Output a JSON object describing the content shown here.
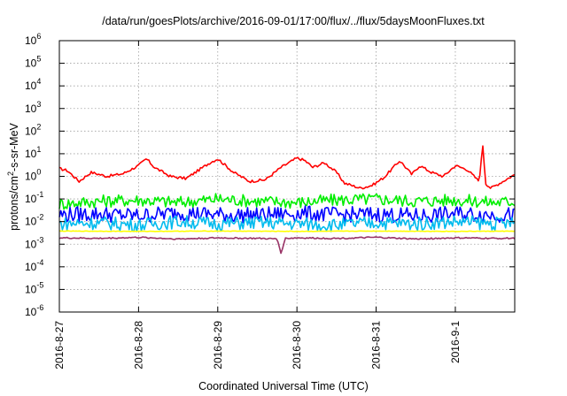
{
  "chart_data": {
    "type": "line",
    "title": "/data/run/goesPlots/archive/2016-09-01/17:00/flux/../flux/5daysMoonFluxes.txt",
    "xlabel": "Coordinated Universal Time (UTC)",
    "ylabel": {
      "prefix": "protons/cm",
      "sup": "2",
      "suffix": "-s-sr-MeV"
    },
    "yscale": "log",
    "ylim": [
      1e-06,
      1000000.0
    ],
    "xlim": [
      "2016-08-27T00:00",
      "2016-09-01T18:00"
    ],
    "grid": true,
    "legend": "none",
    "x_ticks": [
      "2016-8-27",
      "2016-8-28",
      "2016-8-29",
      "2016-8-30",
      "2016-8-31",
      "2016-9-1"
    ],
    "y_ticks": [
      {
        "base": "10",
        "exp": "-6"
      },
      {
        "base": "10",
        "exp": "-5"
      },
      {
        "base": "10",
        "exp": "-4"
      },
      {
        "base": "10",
        "exp": "-3"
      },
      {
        "base": "10",
        "exp": "-2"
      },
      {
        "base": "10",
        "exp": "-1"
      },
      {
        "base": "10",
        "exp": "0"
      },
      {
        "base": "10",
        "exp": "1"
      },
      {
        "base": "10",
        "exp": "2"
      },
      {
        "base": "10",
        "exp": "3"
      },
      {
        "base": "10",
        "exp": "4"
      },
      {
        "base": "10",
        "exp": "5"
      },
      {
        "base": "10",
        "exp": "6"
      }
    ],
    "series": [
      {
        "color": "#ff0000",
        "x_days": [
          0,
          0.1,
          0.25,
          0.4,
          0.6,
          0.8,
          1.0,
          1.1,
          1.2,
          1.4,
          1.6,
          1.9,
          2.0,
          2.2,
          2.4,
          2.6,
          2.8,
          3.0,
          3.1,
          3.2,
          3.35,
          3.5,
          3.6,
          3.8,
          3.95,
          4.1,
          4.3,
          4.45,
          4.55,
          4.7,
          4.85,
          5.0,
          5.15,
          5.3,
          5.35,
          5.38,
          5.45,
          5.6,
          5.75,
          5.9,
          6.05,
          6.2,
          6.35,
          6.5,
          6.6,
          6.75
        ],
        "values": [
          2.2,
          1.8,
          0.6,
          1.5,
          1.0,
          1.3,
          3.0,
          6.0,
          2.5,
          1.0,
          0.8,
          4.0,
          6.0,
          1.5,
          0.6,
          0.7,
          2.5,
          6.5,
          5.0,
          2.5,
          4.0,
          1.5,
          0.5,
          0.3,
          0.4,
          0.9,
          5.0,
          1.2,
          3.0,
          1.5,
          1.0,
          3.0,
          2.0,
          0.6,
          28.0,
          0.5,
          0.3,
          0.6,
          1.2,
          0.6,
          2.0,
          1.5,
          5.0,
          2.5,
          3.0,
          2.5
        ]
      },
      {
        "color": "#00ee00",
        "x_days": [
          0,
          0.5,
          1.0,
          1.5,
          2.0,
          2.5,
          3.0,
          3.5,
          4.0,
          4.5,
          5.0,
          5.5,
          6.0,
          6.5,
          6.75
        ],
        "values": [
          0.06,
          0.08,
          0.09,
          0.07,
          0.1,
          0.08,
          0.07,
          0.09,
          0.1,
          0.08,
          0.09,
          0.07,
          0.09,
          0.08,
          0.08
        ]
      },
      {
        "color": "#0000ff",
        "x_days": [
          0,
          0.5,
          1.0,
          1.5,
          2.0,
          2.5,
          3.0,
          3.5,
          4.0,
          4.5,
          5.0,
          5.5,
          6.0,
          6.5,
          6.75
        ],
        "values": [
          0.02,
          0.022,
          0.018,
          0.025,
          0.02,
          0.019,
          0.023,
          0.02,
          0.021,
          0.018,
          0.022,
          0.02,
          0.019,
          0.021,
          0.02
        ]
      },
      {
        "color": "#00bbee",
        "x_days": [
          0,
          0.5,
          1.0,
          1.5,
          2.0,
          2.5,
          3.0,
          3.5,
          4.0,
          4.5,
          5.0,
          5.5,
          6.0,
          6.5,
          6.75
        ],
        "values": [
          0.008,
          0.009,
          0.007,
          0.01,
          0.008,
          0.009,
          0.008,
          0.007,
          0.009,
          0.008,
          0.01,
          0.008,
          0.009,
          0.008,
          0.009
        ]
      },
      {
        "color": "#ffff00",
        "x_days": [
          0,
          1.0,
          2.0,
          3.0,
          4.0,
          5.0,
          6.0,
          6.75
        ],
        "values": [
          0.0038,
          0.0037,
          0.0038,
          0.0037,
          0.0038,
          0.0037,
          0.0038,
          0.0038
        ]
      },
      {
        "color": "#993366",
        "x_days": [
          0,
          0.5,
          1.0,
          1.5,
          2.0,
          2.5,
          2.75,
          2.8,
          2.85,
          3.0,
          3.5,
          4.0,
          4.5,
          5.0,
          5.5,
          6.0,
          6.5,
          6.75
        ],
        "values": [
          0.0019,
          0.0018,
          0.002,
          0.0017,
          0.0019,
          0.0018,
          0.0017,
          0.0004,
          0.0018,
          0.0019,
          0.0018,
          0.002,
          0.0017,
          0.0019,
          0.0018,
          0.0019,
          0.0018,
          0.0018
        ]
      }
    ]
  }
}
